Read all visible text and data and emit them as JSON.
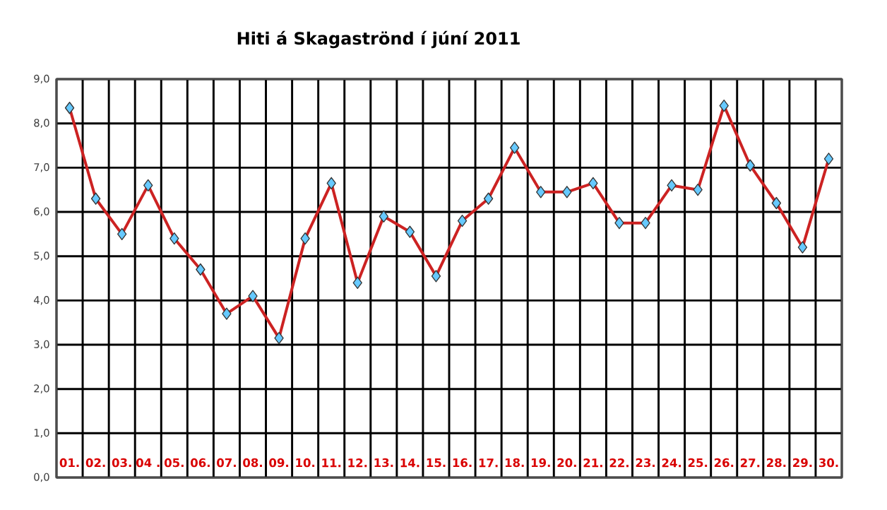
{
  "chart_data": {
    "type": "line",
    "title": "Hiti á Skagaströnd í júní 2011",
    "categories": [
      "01.",
      "02.",
      "03.",
      "04 .",
      "05.",
      "06.",
      "07.",
      "08.",
      "09.",
      "10.",
      "11.",
      "12.",
      "13.",
      "14.",
      "15.",
      "16.",
      "17.",
      "18.",
      "19.",
      "20.",
      "21.",
      "22.",
      "23.",
      "24.",
      "25.",
      "26.",
      "27.",
      "28.",
      "29.",
      "30."
    ],
    "series": [
      {
        "color": "#cc2222",
        "values": [
          8.35,
          6.3,
          5.5,
          6.6,
          5.4,
          4.7,
          3.7,
          4.1,
          3.15,
          5.4,
          6.65,
          4.4,
          5.9,
          5.55,
          4.55,
          5.8,
          6.3,
          7.45,
          6.45,
          6.45,
          6.65,
          5.75,
          5.75,
          6.6,
          6.5,
          8.4,
          7.05,
          6.2,
          5.2,
          7.2
        ]
      }
    ],
    "ylim": [
      0,
      9
    ],
    "yticks": [
      {
        "value": 0,
        "label": "0,0"
      },
      {
        "value": 1,
        "label": "1,0"
      },
      {
        "value": 2,
        "label": "2,0"
      },
      {
        "value": 3,
        "label": "3,0"
      },
      {
        "value": 4,
        "label": "4,0"
      },
      {
        "value": 5,
        "label": "5,0"
      },
      {
        "value": 6,
        "label": "6,0"
      },
      {
        "value": 7,
        "label": "7,0"
      },
      {
        "value": 8,
        "label": "8,0"
      },
      {
        "value": 9,
        "label": "9,0"
      }
    ],
    "grid": true,
    "marker": "diamond",
    "line_style": "solid"
  }
}
